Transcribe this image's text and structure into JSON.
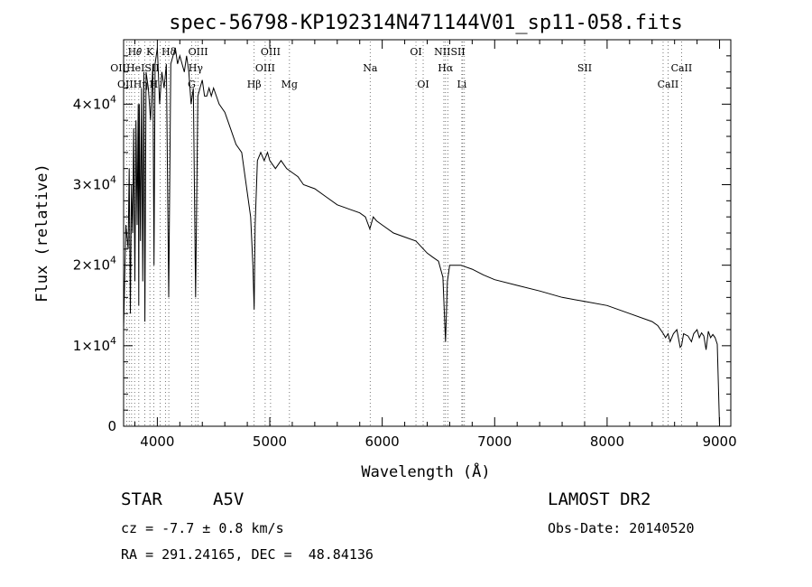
{
  "chart_data": {
    "type": "line",
    "title": "spec-56798-KP192314N471144V01_sp11-058.fits",
    "xlabel": "Wavelength (Å)",
    "ylabel": "Flux (relative)",
    "xlim": [
      3700,
      9100
    ],
    "ylim": [
      0,
      48000
    ],
    "xticks": [
      4000,
      5000,
      6000,
      7000,
      8000,
      9000
    ],
    "xtick_labels": [
      "4000",
      "5000",
      "6000",
      "7000",
      "8000",
      "9000"
    ],
    "yticks": [
      0,
      10000,
      20000,
      30000,
      40000
    ],
    "ytick_labels": [
      {
        "mant": "0",
        "exp": ""
      },
      {
        "mant": "1×10",
        "exp": "4"
      },
      {
        "mant": "2×10",
        "exp": "4"
      },
      {
        "mant": "3×10",
        "exp": "4"
      },
      {
        "mant": "4×10",
        "exp": "4"
      }
    ],
    "grid": false,
    "series": [
      {
        "x": [
          3700,
          3720,
          3740,
          3750,
          3760,
          3770,
          3780,
          3790,
          3800,
          3810,
          3820,
          3830,
          3835,
          3840,
          3850,
          3860,
          3870,
          3880,
          3889,
          3900,
          3920,
          3940,
          3960,
          3970,
          3980,
          4000,
          4020,
          4040,
          4060,
          4080,
          4101,
          4120,
          4140,
          4160,
          4180,
          4200,
          4220,
          4240,
          4260,
          4280,
          4300,
          4320,
          4340,
          4360,
          4380,
          4400,
          4420,
          4440,
          4460,
          4480,
          4500,
          4550,
          4600,
          4650,
          4700,
          4750,
          4800,
          4830,
          4850,
          4861,
          4870,
          4890,
          4920,
          4950,
          4980,
          5000,
          5050,
          5100,
          5150,
          5200,
          5250,
          5300,
          5400,
          5500,
          5600,
          5700,
          5800,
          5850,
          5890,
          5920,
          5950,
          6000,
          6100,
          6200,
          6300,
          6400,
          6450,
          6500,
          6540,
          6563,
          6580,
          6600,
          6650,
          6700,
          6800,
          6900,
          7000,
          7200,
          7400,
          7600,
          7800,
          8000,
          8200,
          8400,
          8450,
          8500,
          8520,
          8542,
          8560,
          8590,
          8620,
          8650,
          8662,
          8680,
          8720,
          8750,
          8770,
          8800,
          8820,
          8840,
          8860,
          8880,
          8900,
          8920,
          8940,
          8960,
          8980,
          9000
        ],
        "y": [
          12000,
          25000,
          22000,
          32000,
          14000,
          30000,
          24000,
          37000,
          18000,
          38000,
          25000,
          40000,
          15000,
          40000,
          23000,
          42000,
          18000,
          44000,
          13000,
          44000,
          42000,
          38000,
          45000,
          20000,
          45000,
          47000,
          40000,
          44000,
          42000,
          45000,
          16000,
          45000,
          46000,
          47000,
          45000,
          46000,
          45000,
          44000,
          46000,
          44000,
          40000,
          42000,
          16000,
          41000,
          42000,
          43000,
          41000,
          41000,
          42000,
          41000,
          42000,
          40000,
          39000,
          37000,
          35000,
          34000,
          29000,
          26000,
          20000,
          14500,
          25000,
          33000,
          34000,
          33000,
          34000,
          33000,
          32000,
          33000,
          32000,
          31500,
          31000,
          30000,
          29500,
          28500,
          27500,
          27000,
          26500,
          26000,
          24500,
          26000,
          25500,
          25000,
          24000,
          23500,
          23000,
          21500,
          21000,
          20500,
          18500,
          10500,
          18000,
          20000,
          20000,
          20000,
          19500,
          18800,
          18200,
          17500,
          16800,
          16000,
          15500,
          15000,
          14000,
          13000,
          12500,
          11500,
          11000,
          11500,
          10500,
          11500,
          12000,
          9800,
          10000,
          11500,
          11200,
          10500,
          11500,
          12000,
          11000,
          11600,
          11200,
          9500,
          11800,
          11000,
          11400,
          11000,
          10200,
          0
        ]
      }
    ],
    "lines_upper": [
      {
        "label": "H𝜃",
        "x": 3798
      },
      {
        "label": "K",
        "x": 3934
      },
      {
        "label": "Hδ",
        "x": 4102
      },
      {
        "label": "OIII",
        "x": 4363
      },
      {
        "label": "OIII",
        "x": 5007
      },
      {
        "label": "OI",
        "x": 6300
      },
      {
        "label": "NIISII",
        "x": 6600
      }
    ],
    "lines_middle": [
      {
        "label": "OIIHeISII",
        "x": 3800
      },
      {
        "label": "Hγ",
        "x": 4341
      },
      {
        "label": "OIII",
        "x": 4959
      },
      {
        "label": "Na",
        "x": 5893
      },
      {
        "label": "Hα",
        "x": 6563
      },
      {
        "label": "SII",
        "x": 7800
      },
      {
        "label": "CaII",
        "x": 8662
      }
    ],
    "lines_lower": [
      {
        "label": "OIIHη",
        "x": 3780
      },
      {
        "label": "H",
        "x": 3968
      },
      {
        "label": "G",
        "x": 4305
      },
      {
        "label": "Hβ",
        "x": 4861
      },
      {
        "label": "Mg",
        "x": 5175
      },
      {
        "label": "OI",
        "x": 6364
      },
      {
        "label": "Li",
        "x": 6708
      },
      {
        "label": "CaII",
        "x": 8542
      }
    ],
    "line_markers": [
      3727,
      3750,
      3771,
      3798,
      3835,
      3889,
      3934,
      3968,
      4026,
      4072,
      4102,
      4305,
      4341,
      4363,
      4861,
      4959,
      5007,
      5175,
      5893,
      6300,
      6364,
      6548,
      6563,
      6583,
      6708,
      6716,
      6731,
      7800,
      8498,
      8542,
      8662
    ]
  },
  "info": {
    "object_class": "STAR",
    "subclass": "A5V",
    "survey": "LAMOST DR2",
    "cz": "cz = -7.7 ± 0.8 km/s",
    "obs_date": "Obs-Date: 20140520",
    "radec": "RA = 291.24165, DEC =  48.84136"
  }
}
